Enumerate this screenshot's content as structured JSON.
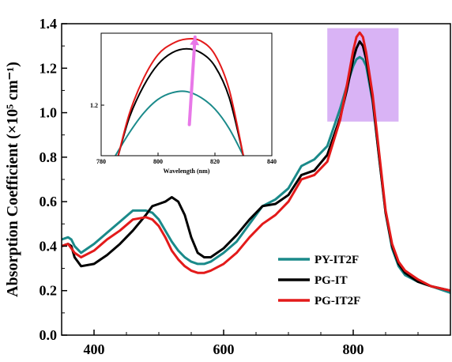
{
  "chart_data": [
    {
      "type": "line",
      "xlabel": "",
      "ylabel": "Absorption Coefficient (×10⁵ cm⁻¹)",
      "xlim": [
        350,
        950
      ],
      "ylim": [
        0.0,
        1.4
      ],
      "xticks": [
        400,
        600,
        800
      ],
      "yticks": [
        0.0,
        0.2,
        0.4,
        0.6,
        0.8,
        1.0,
        1.2,
        1.4
      ],
      "highlight": {
        "x": [
          760,
          870
        ],
        "y": [
          0.96,
          1.38
        ],
        "color": "#d9b3f5"
      },
      "legend_placement": "bottom-right",
      "series": [
        {
          "name": "PY-IT2F",
          "color": "#1a8a8a",
          "x": [
            350,
            360,
            365,
            370,
            380,
            400,
            420,
            440,
            460,
            480,
            490,
            500,
            510,
            520,
            530,
            540,
            550,
            560,
            570,
            580,
            600,
            620,
            640,
            660,
            680,
            700,
            720,
            740,
            760,
            780,
            790,
            800,
            805,
            810,
            815,
            820,
            830,
            840,
            850,
            860,
            870,
            880,
            900,
            920,
            950
          ],
          "y": [
            0.43,
            0.44,
            0.43,
            0.4,
            0.37,
            0.41,
            0.46,
            0.51,
            0.56,
            0.56,
            0.55,
            0.52,
            0.47,
            0.42,
            0.38,
            0.35,
            0.33,
            0.32,
            0.32,
            0.33,
            0.37,
            0.42,
            0.5,
            0.58,
            0.61,
            0.66,
            0.76,
            0.79,
            0.85,
            1.02,
            1.12,
            1.21,
            1.24,
            1.25,
            1.24,
            1.21,
            1.05,
            0.8,
            0.55,
            0.39,
            0.31,
            0.27,
            0.24,
            0.22,
            0.19
          ]
        },
        {
          "name": "PG-IT",
          "color": "#000000",
          "x": [
            350,
            360,
            365,
            370,
            380,
            400,
            420,
            440,
            460,
            480,
            490,
            500,
            510,
            520,
            530,
            540,
            550,
            560,
            570,
            580,
            600,
            620,
            640,
            660,
            680,
            700,
            720,
            740,
            760,
            780,
            790,
            800,
            805,
            810,
            815,
            820,
            830,
            840,
            850,
            860,
            870,
            880,
            900,
            920,
            950
          ],
          "y": [
            0.4,
            0.41,
            0.4,
            0.35,
            0.31,
            0.32,
            0.36,
            0.41,
            0.47,
            0.54,
            0.58,
            0.59,
            0.6,
            0.62,
            0.6,
            0.54,
            0.44,
            0.37,
            0.35,
            0.35,
            0.39,
            0.45,
            0.52,
            0.58,
            0.59,
            0.63,
            0.72,
            0.74,
            0.81,
            0.98,
            1.1,
            1.24,
            1.29,
            1.32,
            1.3,
            1.24,
            1.06,
            0.8,
            0.55,
            0.4,
            0.32,
            0.28,
            0.24,
            0.22,
            0.2
          ]
        },
        {
          "name": "PG-IT2F",
          "color": "#e31a1a",
          "x": [
            350,
            360,
            365,
            370,
            380,
            400,
            420,
            440,
            460,
            480,
            490,
            500,
            510,
            520,
            530,
            540,
            550,
            560,
            570,
            580,
            600,
            620,
            640,
            660,
            680,
            700,
            720,
            740,
            760,
            780,
            790,
            800,
            805,
            810,
            815,
            820,
            830,
            840,
            850,
            860,
            870,
            880,
            900,
            920,
            950
          ],
          "y": [
            0.4,
            0.41,
            0.39,
            0.37,
            0.35,
            0.38,
            0.43,
            0.47,
            0.52,
            0.53,
            0.52,
            0.49,
            0.44,
            0.38,
            0.34,
            0.31,
            0.29,
            0.28,
            0.28,
            0.29,
            0.32,
            0.37,
            0.44,
            0.5,
            0.54,
            0.6,
            0.7,
            0.72,
            0.78,
            0.97,
            1.12,
            1.28,
            1.34,
            1.36,
            1.34,
            1.27,
            1.08,
            0.82,
            0.56,
            0.41,
            0.33,
            0.29,
            0.25,
            0.22,
            0.2
          ]
        }
      ]
    },
    {
      "type": "line",
      "inset": true,
      "xlabel": "Wavelength (nm)",
      "ylabel": "",
      "xlim": [
        780,
        840
      ],
      "ylim": [
        1.07,
        1.385
      ],
      "xticks": [
        780,
        800,
        820,
        840
      ],
      "yticks": [
        1.2
      ],
      "arrow": {
        "x": [
          811,
          813
        ],
        "y": [
          1.15,
          1.375
        ],
        "color": "#e878e8"
      },
      "series": [
        {
          "name": "PY-IT2F",
          "color": "#1a8a8a",
          "x": [
            785,
            790,
            795,
            800,
            805,
            810,
            815,
            820,
            825,
            830
          ],
          "y": [
            1.07,
            1.13,
            1.18,
            1.215,
            1.232,
            1.235,
            1.22,
            1.19,
            1.14,
            1.07
          ]
        },
        {
          "name": "PG-IT",
          "color": "#000000",
          "x": [
            786,
            790,
            795,
            800,
            805,
            810,
            815,
            820,
            825,
            830
          ],
          "y": [
            1.07,
            1.17,
            1.25,
            1.305,
            1.335,
            1.345,
            1.335,
            1.3,
            1.22,
            1.07
          ]
        },
        {
          "name": "PG-IT2F",
          "color": "#e31a1a",
          "x": [
            786,
            790,
            795,
            800,
            805,
            810,
            815,
            820,
            825,
            830
          ],
          "y": [
            1.07,
            1.18,
            1.27,
            1.33,
            1.358,
            1.37,
            1.365,
            1.33,
            1.24,
            1.07
          ]
        }
      ]
    }
  ]
}
